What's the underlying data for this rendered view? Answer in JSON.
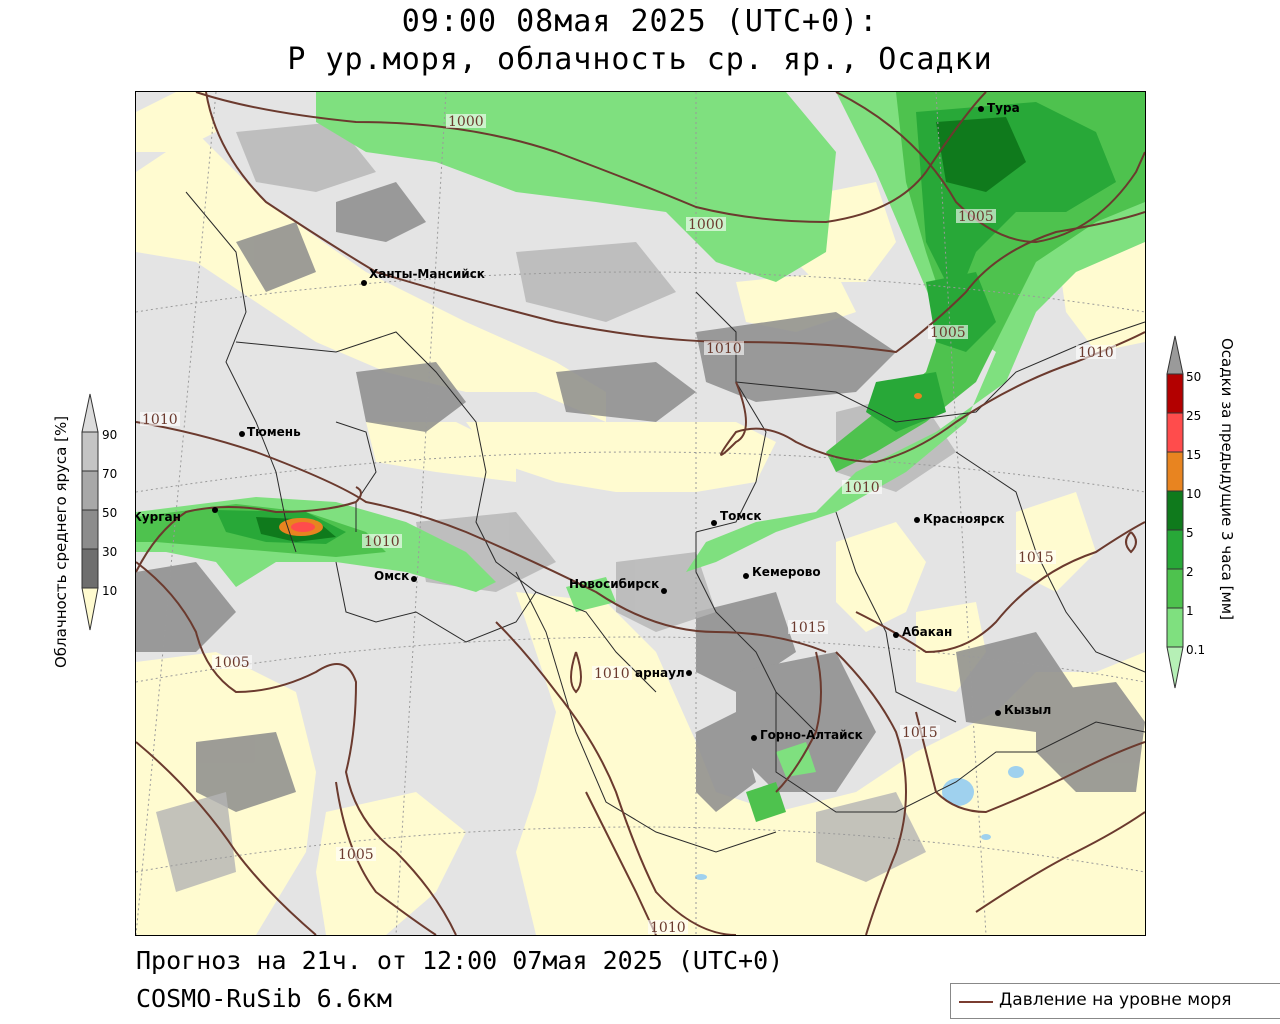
{
  "header": {
    "title_line1": "09:00 08мая 2025 (UTC+0):",
    "title_line2": "P ур.моря, облачность ср. яр., Осадки"
  },
  "footer": {
    "forecast_line": "Прогноз на 21ч. от 12:00 07мая 2025 (UTC+0)",
    "model_line": "COSMO-RuSib 6.6км"
  },
  "left_colorbar": {
    "title": "Облачность среднего яруса [%]",
    "ticks": [
      "90",
      "70",
      "50",
      "30",
      "10"
    ],
    "colors": [
      "#dcdcdc",
      "#c4c4c4",
      "#a8a8a8",
      "#8c8c8c",
      "#6e6e6e",
      "#fffbd0"
    ]
  },
  "right_colorbar": {
    "title": "Осадки за предыдущие 3 часа [мм]",
    "ticks": [
      "50",
      "25",
      "15",
      "10",
      "5",
      "2",
      "1",
      "0.1"
    ],
    "colors": [
      "#9a9a9a",
      "#b30000",
      "#ff4c4c",
      "#e88420",
      "#0f7a1c",
      "#28a838",
      "#4ec24e",
      "#7fe07f",
      "#b6f0b6"
    ]
  },
  "cities": [
    {
      "name": "Тура"
    },
    {
      "name": "Ханты-Мансийск"
    },
    {
      "name": "Тюмень"
    },
    {
      "name": "Курган"
    },
    {
      "name": "Омск"
    },
    {
      "name": "Томск"
    },
    {
      "name": "Красноярск"
    },
    {
      "name": "Новосибирск"
    },
    {
      "name": "Кемерово"
    },
    {
      "name": "Абакан"
    },
    {
      "name": "арнаул"
    },
    {
      "name": "Горно-Алтайск"
    },
    {
      "name": "Кызыл"
    }
  ],
  "isobar_labels": [
    "1000",
    "1005",
    "1000",
    "1005",
    "1010",
    "1010",
    "1010",
    "1010",
    "1010",
    "1015",
    "1005",
    "1010",
    "1015",
    "1015",
    "1005",
    "1010"
  ],
  "legend": {
    "pressure_label": "Давление на уровне моря",
    "line_color": "#7a3c30"
  }
}
